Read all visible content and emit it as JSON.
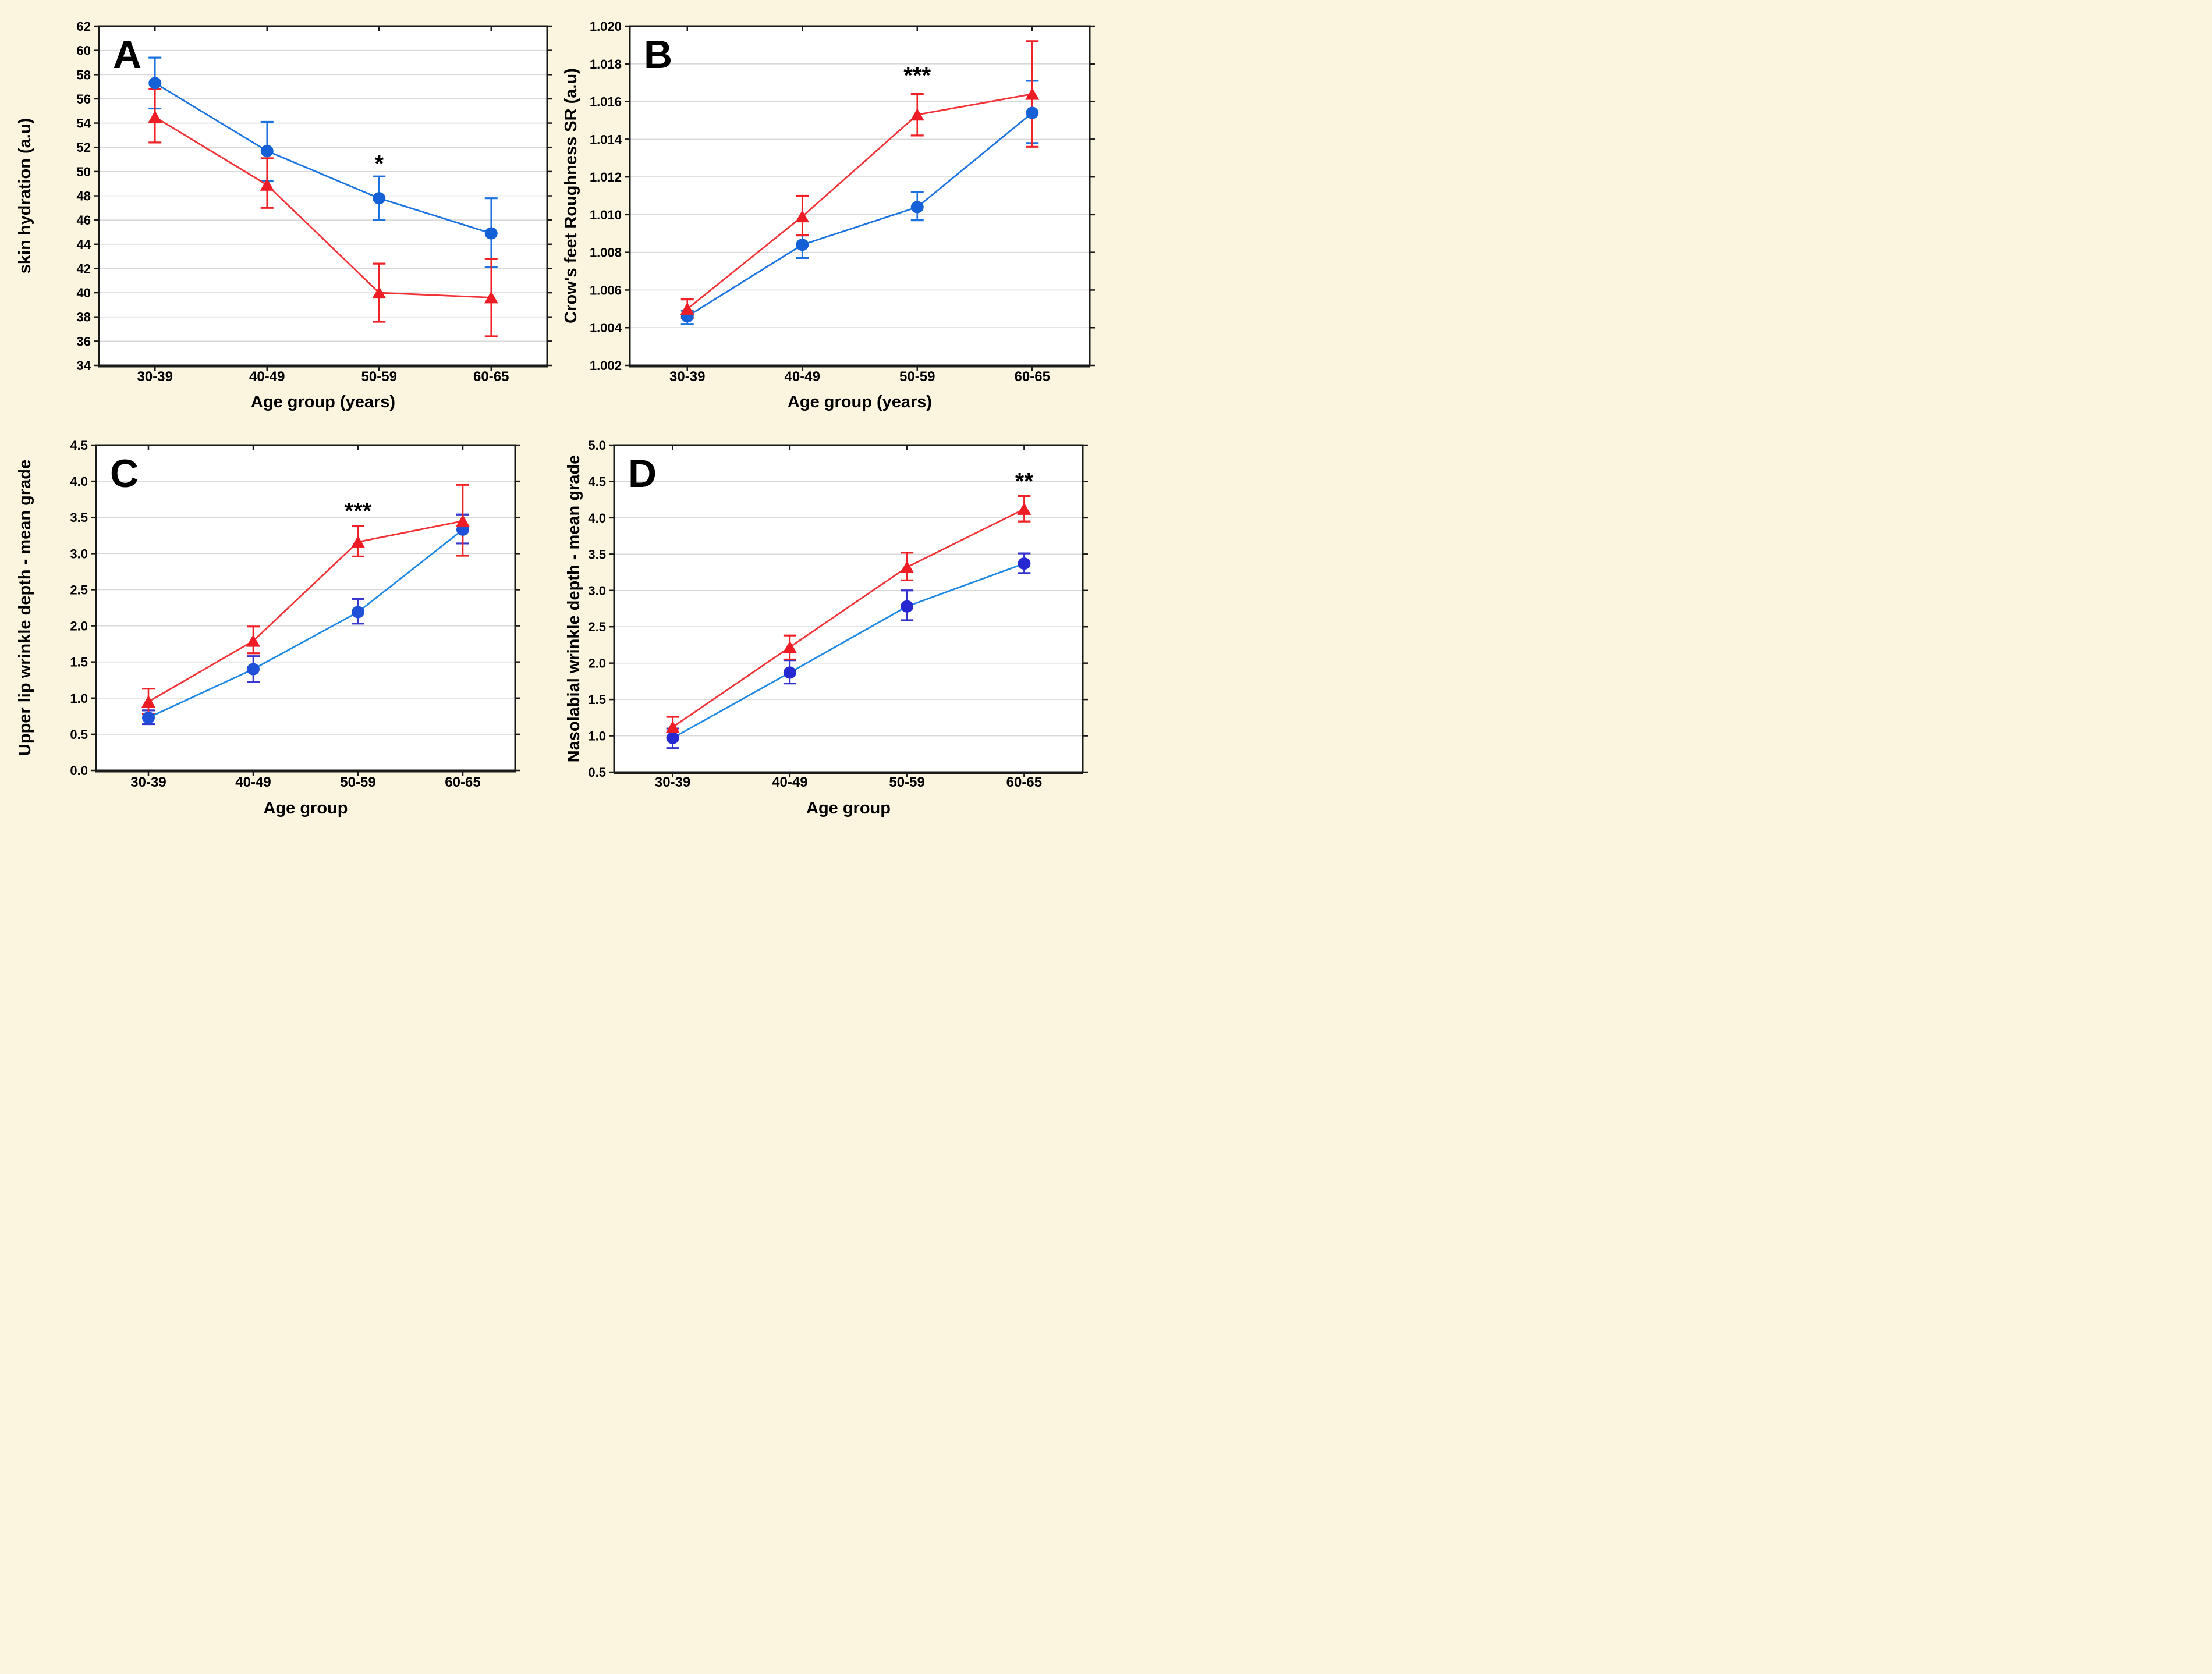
{
  "figure": {
    "background_color": "#fbf4df",
    "plot_background": "#ffffff",
    "grid_color": "#d8d8d8",
    "frame_color": "#1a1a1a",
    "text_color": "#000000"
  },
  "chart_data": [
    {
      "panel_letter": "A",
      "type": "line",
      "xlabel": "Age group (years)",
      "ylabel": "skin hydration (a.u)",
      "categories": [
        "30-39",
        "40-49",
        "50-59",
        "60-65"
      ],
      "ylim": [
        34,
        62
      ],
      "yticks": [
        34,
        36,
        38,
        40,
        42,
        44,
        46,
        48,
        50,
        52,
        54,
        56,
        58,
        60,
        62
      ],
      "ytick_labels": [
        "34",
        "36",
        "38",
        "40",
        "42",
        "44",
        "46",
        "48",
        "50",
        "52",
        "54",
        "56",
        "58",
        "60",
        "62"
      ],
      "grid": true,
      "significance": [
        {
          "text": "*",
          "category": "50-59",
          "y": 50.6
        }
      ],
      "series": [
        {
          "name": "blue-circles",
          "marker": "circle",
          "line_color": "#1a73e0",
          "marker_color": "#1460d6",
          "error_color": "#1a73e0",
          "points": [
            {
              "y": 57.3,
              "lo": 55.2,
              "hi": 59.4
            },
            {
              "y": 51.7,
              "lo": 49.2,
              "hi": 54.1
            },
            {
              "y": 47.8,
              "lo": 46.0,
              "hi": 49.6
            },
            {
              "y": 44.9,
              "lo": 42.1,
              "hi": 47.8
            }
          ]
        },
        {
          "name": "red-triangles",
          "marker": "triangle",
          "line_color": "#f13338",
          "marker_color": "#ee1c24",
          "error_color": "#f02228",
          "points": [
            {
              "y": 54.5,
              "lo": 52.4,
              "hi": 56.8
            },
            {
              "y": 48.9,
              "lo": 47.0,
              "hi": 51.1
            },
            {
              "y": 40.0,
              "lo": 37.6,
              "hi": 42.4
            },
            {
              "y": 39.6,
              "lo": 36.4,
              "hi": 42.8
            }
          ]
        }
      ]
    },
    {
      "panel_letter": "B",
      "type": "line",
      "xlabel": "Age group (years)",
      "ylabel": "Crow's feet Roughness SR (a.u)",
      "categories": [
        "30-39",
        "40-49",
        "50-59",
        "60-65"
      ],
      "ylim": [
        1.002,
        1.02
      ],
      "yticks": [
        1.002,
        1.004,
        1.006,
        1.008,
        1.01,
        1.012,
        1.014,
        1.016,
        1.018,
        1.02
      ],
      "ytick_labels": [
        "1.002",
        "1.004",
        "1.006",
        "1.008",
        "1.010",
        "1.012",
        "1.014",
        "1.016",
        "1.018",
        "1.020"
      ],
      "grid": true,
      "significance": [
        {
          "text": "***",
          "category": "50-59",
          "y": 1.01735
        }
      ],
      "series": [
        {
          "name": "blue-circles",
          "marker": "circle",
          "line_color": "#1a73e0",
          "marker_color": "#1460d6",
          "error_color": "#1a73e0",
          "points": [
            {
              "y": 1.0046,
              "lo": 1.0042,
              "hi": 1.0049
            },
            {
              "y": 1.0084,
              "lo": 1.0077,
              "hi": 1.0089
            },
            {
              "y": 1.0104,
              "lo": 1.0097,
              "hi": 1.0112
            },
            {
              "y": 1.0154,
              "lo": 1.0138,
              "hi": 1.0171
            }
          ]
        },
        {
          "name": "red-triangles",
          "marker": "triangle",
          "line_color": "#f13338",
          "marker_color": "#ee1c24",
          "error_color": "#f02228",
          "points": [
            {
              "y": 1.005,
              "lo": 1.0045,
              "hi": 1.0055
            },
            {
              "y": 1.0099,
              "lo": 1.0089,
              "hi": 1.011
            },
            {
              "y": 1.0153,
              "lo": 1.0142,
              "hi": 1.0164
            },
            {
              "y": 1.0164,
              "lo": 1.0136,
              "hi": 1.0192
            }
          ]
        }
      ]
    },
    {
      "panel_letter": "C",
      "type": "line",
      "xlabel": "Age group",
      "ylabel": "Upper lip wrinkle depth - mean grade",
      "categories": [
        "30-39",
        "40-49",
        "50-59",
        "60-65"
      ],
      "ylim": [
        0.0,
        4.5
      ],
      "yticks": [
        0.0,
        0.5,
        1.0,
        1.5,
        2.0,
        2.5,
        3.0,
        3.5,
        4.0,
        4.5
      ],
      "ytick_labels": [
        "0.0",
        "0.5",
        "1.0",
        "1.5",
        "2.0",
        "2.5",
        "3.0",
        "3.5",
        "4.0",
        "4.5"
      ],
      "grid": true,
      "significance": [
        {
          "text": "***",
          "category": "50-59",
          "y": 3.58
        }
      ],
      "series": [
        {
          "name": "blue-circles",
          "marker": "circle",
          "line_color": "#1e88e5",
          "marker_color": "#1e50d8",
          "error_color": "#3838cf",
          "points": [
            {
              "y": 0.73,
              "lo": 0.64,
              "hi": 0.83
            },
            {
              "y": 1.4,
              "lo": 1.22,
              "hi": 1.58
            },
            {
              "y": 2.19,
              "lo": 2.03,
              "hi": 2.37
            },
            {
              "y": 3.33,
              "lo": 3.14,
              "hi": 3.54
            }
          ]
        },
        {
          "name": "red-triangles",
          "marker": "triangle",
          "line_color": "#f13338",
          "marker_color": "#ee1c24",
          "error_color": "#f02228",
          "points": [
            {
              "y": 0.95,
              "lo": 0.78,
              "hi": 1.13
            },
            {
              "y": 1.79,
              "lo": 1.62,
              "hi": 1.99
            },
            {
              "y": 3.16,
              "lo": 2.96,
              "hi": 3.38
            },
            {
              "y": 3.45,
              "lo": 2.97,
              "hi": 3.95
            }
          ]
        }
      ]
    },
    {
      "panel_letter": "D",
      "type": "line",
      "xlabel": "Age group",
      "ylabel": "Nasolabial wrinkle depth - mean grade",
      "categories": [
        "30-39",
        "40-49",
        "50-59",
        "60-65"
      ],
      "ylim": [
        0.5,
        5.0
      ],
      "yticks": [
        0.5,
        1.0,
        1.5,
        2.0,
        2.5,
        3.0,
        3.5,
        4.0,
        4.5,
        5.0
      ],
      "ytick_labels": [
        "0.5",
        "1.0",
        "1.5",
        "2.0",
        "2.5",
        "3.0",
        "3.5",
        "4.0",
        "4.5",
        "5.0"
      ],
      "grid": true,
      "significance": [
        {
          "text": "**",
          "category": "60-65",
          "y": 4.49
        }
      ],
      "series": [
        {
          "name": "blue-circles",
          "marker": "circle",
          "line_color": "#1e88e5",
          "marker_color": "#2629d2",
          "error_color": "#3232cf",
          "points": [
            {
              "y": 0.97,
              "lo": 0.83,
              "hi": 1.1
            },
            {
              "y": 1.87,
              "lo": 1.72,
              "hi": 2.04
            },
            {
              "y": 2.78,
              "lo": 2.59,
              "hi": 3.0
            },
            {
              "y": 3.37,
              "lo": 3.24,
              "hi": 3.51
            }
          ]
        },
        {
          "name": "red-triangles",
          "marker": "triangle",
          "line_color": "#f13338",
          "marker_color": "#ee1c24",
          "error_color": "#f02228",
          "points": [
            {
              "y": 1.12,
              "lo": 0.98,
              "hi": 1.26
            },
            {
              "y": 2.22,
              "lo": 2.05,
              "hi": 2.38
            },
            {
              "y": 3.32,
              "lo": 3.14,
              "hi": 3.52
            },
            {
              "y": 4.12,
              "lo": 3.95,
              "hi": 4.3
            }
          ]
        }
      ]
    }
  ]
}
